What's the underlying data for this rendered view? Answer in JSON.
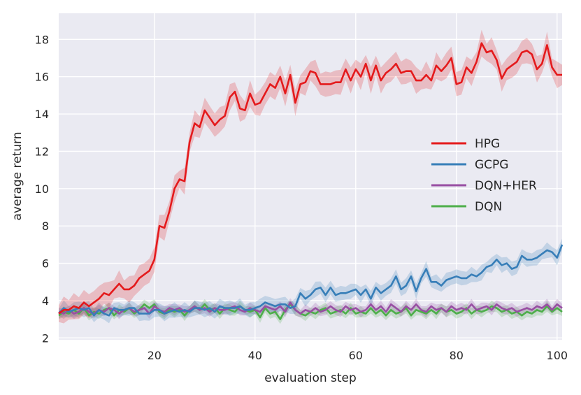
{
  "chart_data": {
    "type": "line",
    "title": "",
    "xlabel": "evaluation step",
    "ylabel": "average return",
    "xlim": [
      1,
      101
    ],
    "ylim": [
      1.9,
      19.4
    ],
    "xticks": [
      20,
      40,
      60,
      80,
      100
    ],
    "yticks": [
      2,
      4,
      6,
      8,
      10,
      12,
      14,
      16,
      18
    ],
    "grid": true,
    "legend_position": "right",
    "x": [
      1,
      2,
      3,
      4,
      5,
      6,
      7,
      8,
      9,
      10,
      11,
      12,
      13,
      14,
      15,
      16,
      17,
      18,
      19,
      20,
      21,
      22,
      23,
      24,
      25,
      26,
      27,
      28,
      29,
      30,
      31,
      32,
      33,
      34,
      35,
      36,
      37,
      38,
      39,
      40,
      41,
      42,
      43,
      44,
      45,
      46,
      47,
      48,
      49,
      50,
      51,
      52,
      53,
      54,
      55,
      56,
      57,
      58,
      59,
      60,
      61,
      62,
      63,
      64,
      65,
      66,
      67,
      68,
      69,
      70,
      71,
      72,
      73,
      74,
      75,
      76,
      77,
      78,
      79,
      80,
      81,
      82,
      83,
      84,
      85,
      86,
      87,
      88,
      89,
      90,
      91,
      92,
      93,
      94,
      95,
      96,
      97,
      98,
      99,
      100,
      101
    ],
    "series": [
      {
        "name": "HPG",
        "color": "#e41a1c",
        "band": 0.6,
        "values": [
          3.3,
          3.5,
          3.5,
          3.7,
          3.6,
          3.9,
          3.7,
          3.9,
          4.1,
          4.4,
          4.3,
          4.6,
          4.9,
          4.6,
          4.6,
          4.8,
          5.2,
          5.4,
          5.6,
          6.2,
          8.0,
          7.9,
          8.8,
          10.0,
          10.5,
          10.4,
          12.5,
          13.5,
          13.3,
          14.2,
          13.8,
          13.4,
          13.7,
          13.9,
          14.9,
          15.2,
          14.3,
          14.2,
          15.1,
          14.5,
          14.6,
          15.1,
          15.6,
          15.4,
          16.0,
          15.1,
          16.1,
          14.6,
          15.6,
          15.7,
          16.3,
          16.2,
          15.6,
          15.6,
          15.6,
          15.7,
          15.7,
          16.4,
          15.8,
          16.4,
          16.0,
          16.7,
          15.8,
          16.6,
          15.8,
          16.2,
          16.4,
          16.7,
          16.2,
          16.3,
          16.3,
          15.8,
          15.8,
          16.1,
          15.8,
          16.6,
          16.3,
          16.6,
          17.0,
          15.6,
          15.7,
          16.5,
          16.2,
          16.8,
          17.8,
          17.3,
          17.4,
          16.9,
          15.9,
          16.4,
          16.6,
          16.8,
          17.3,
          17.4,
          17.2,
          16.4,
          16.7,
          17.7,
          16.5,
          16.1,
          16.1
        ]
      },
      {
        "name": "GCPG",
        "color": "#377eb8",
        "band": 0.35,
        "values": [
          3.3,
          3.6,
          3.4,
          3.5,
          3.6,
          3.5,
          3.6,
          3.2,
          3.5,
          3.3,
          3.2,
          3.6,
          3.5,
          3.5,
          3.6,
          3.6,
          3.3,
          3.3,
          3.3,
          3.5,
          3.5,
          3.3,
          3.4,
          3.5,
          3.4,
          3.5,
          3.4,
          3.6,
          3.6,
          3.5,
          3.6,
          3.4,
          3.7,
          3.6,
          3.6,
          3.6,
          3.7,
          3.5,
          3.5,
          3.6,
          3.7,
          3.9,
          3.8,
          3.7,
          3.8,
          3.8,
          3.6,
          3.7,
          4.4,
          4.1,
          4.3,
          4.6,
          4.7,
          4.3,
          4.7,
          4.3,
          4.4,
          4.4,
          4.5,
          4.6,
          4.3,
          4.6,
          4.1,
          4.7,
          4.4,
          4.6,
          4.8,
          5.3,
          4.6,
          4.8,
          5.3,
          4.5,
          5.2,
          5.7,
          5.0,
          5.0,
          4.8,
          5.1,
          5.2,
          5.3,
          5.2,
          5.2,
          5.4,
          5.3,
          5.5,
          5.8,
          5.9,
          6.2,
          5.9,
          6.0,
          5.7,
          5.8,
          6.4,
          6.2,
          6.2,
          6.3,
          6.5,
          6.7,
          6.6,
          6.3,
          7.0
        ]
      },
      {
        "name": "DQN+HER",
        "color": "#984ea3",
        "band": 0.25,
        "values": [
          3.4,
          3.3,
          3.5,
          3.3,
          3.4,
          3.6,
          3.4,
          3.3,
          3.5,
          3.4,
          3.6,
          3.5,
          3.3,
          3.5,
          3.6,
          3.4,
          3.5,
          3.6,
          3.3,
          3.7,
          3.5,
          3.4,
          3.6,
          3.5,
          3.6,
          3.4,
          3.5,
          3.7,
          3.5,
          3.6,
          3.4,
          3.6,
          3.5,
          3.5,
          3.6,
          3.7,
          3.5,
          3.4,
          3.6,
          3.5,
          3.4,
          3.7,
          3.6,
          3.5,
          3.7,
          3.4,
          3.9,
          3.5,
          3.3,
          3.5,
          3.4,
          3.6,
          3.4,
          3.5,
          3.7,
          3.5,
          3.4,
          3.7,
          3.5,
          3.6,
          3.4,
          3.5,
          3.8,
          3.5,
          3.7,
          3.4,
          3.8,
          3.6,
          3.4,
          3.7,
          3.5,
          3.8,
          3.5,
          3.4,
          3.7,
          3.5,
          3.6,
          3.4,
          3.7,
          3.5,
          3.6,
          3.5,
          3.8,
          3.5,
          3.6,
          3.7,
          3.5,
          3.8,
          3.6,
          3.5,
          3.6,
          3.4,
          3.5,
          3.6,
          3.5,
          3.7,
          3.6,
          3.8,
          3.5,
          3.8,
          3.6
        ]
      },
      {
        "name": "DQN",
        "color": "#4daf4a",
        "band": 0.25,
        "values": [
          3.2,
          3.4,
          3.3,
          3.5,
          3.3,
          3.6,
          3.2,
          3.4,
          3.3,
          3.5,
          3.6,
          3.2,
          3.5,
          3.4,
          3.6,
          3.3,
          3.5,
          3.8,
          3.6,
          3.8,
          3.4,
          3.3,
          3.5,
          3.4,
          3.5,
          3.2,
          3.5,
          3.7,
          3.5,
          3.8,
          3.5,
          3.6,
          3.3,
          3.6,
          3.5,
          3.4,
          3.7,
          3.5,
          3.4,
          3.5,
          3.1,
          3.6,
          3.3,
          3.4,
          3.0,
          3.5,
          3.8,
          3.5,
          3.3,
          3.2,
          3.4,
          3.3,
          3.5,
          3.6,
          3.3,
          3.4,
          3.5,
          3.3,
          3.6,
          3.3,
          3.4,
          3.3,
          3.6,
          3.3,
          3.5,
          3.2,
          3.5,
          3.3,
          3.4,
          3.6,
          3.2,
          3.5,
          3.4,
          3.3,
          3.5,
          3.3,
          3.6,
          3.4,
          3.5,
          3.3,
          3.4,
          3.6,
          3.3,
          3.5,
          3.4,
          3.5,
          3.7,
          3.6,
          3.4,
          3.5,
          3.3,
          3.4,
          3.2,
          3.4,
          3.3,
          3.5,
          3.4,
          3.7,
          3.4,
          3.6,
          3.4
        ]
      }
    ]
  }
}
